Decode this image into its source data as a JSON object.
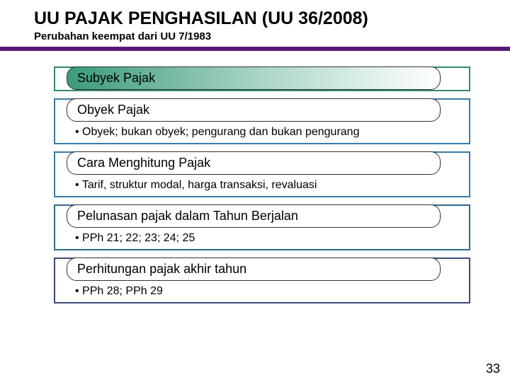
{
  "title": "UU PAJAK PENGHASILAN (UU 36/2008)",
  "subtitle": "Perubahan keempat dari UU 7/1983",
  "page_number": "33",
  "colors": {
    "purple_bar": "#5a1a7a",
    "pill_gradient_start": "#3b9b79",
    "pill_gradient_mid": "#b0d9cb",
    "pill_gradient_end": "#ffffff",
    "block1_border": "#2f8c6a",
    "block2_border": "#3b7aa8",
    "block3_border": "#3b7aa8",
    "block4_border": "#2f6a8c",
    "block5_border": "#3a4a7a"
  },
  "blocks": {
    "b1": {
      "label": "Subyek Pajak"
    },
    "b2": {
      "label": "Obyek Pajak",
      "bullet": "Obyek; bukan obyek; pengurang dan bukan pengurang"
    },
    "b3": {
      "label": "Cara Menghitung Pajak",
      "bullet": "Tarif, struktur modal, harga transaksi, revaluasi"
    },
    "b4": {
      "label": "Pelunasan pajak dalam Tahun Berjalan",
      "bullet": "PPh 21; 22; 23; 24; 25"
    },
    "b5": {
      "label": "Perhitungan pajak akhir tahun",
      "bullet": "PPh 28; PPh 29"
    }
  }
}
